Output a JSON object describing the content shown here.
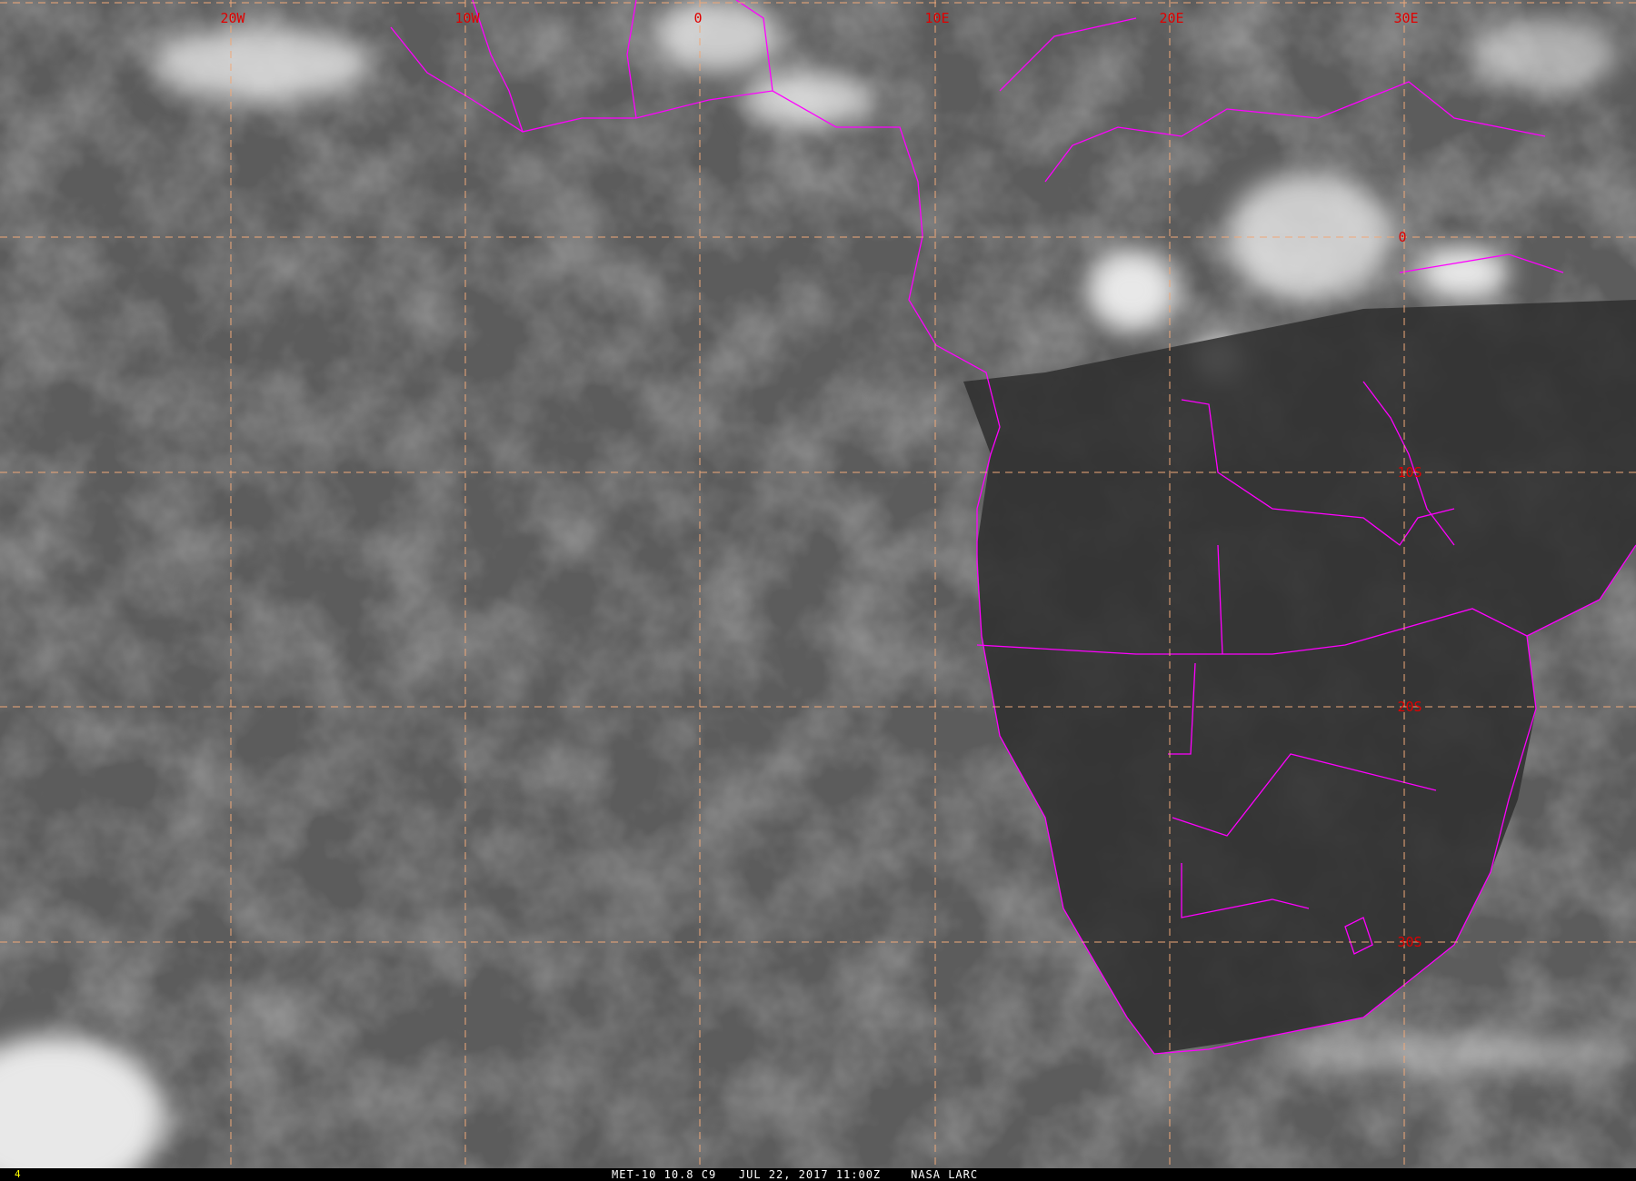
{
  "caption": {
    "satellite": "MET-10",
    "channel": "10.8",
    "band": "C9",
    "date": "JUL 22, 2017",
    "time": "11:00Z",
    "source": "NASA LARC"
  },
  "frame_number": "4",
  "grid": {
    "longitude_labels": [
      "20W",
      "10W",
      "0",
      "10E",
      "20E",
      "30E"
    ],
    "latitude_labels": [
      "0",
      "10S",
      "20S",
      "30S"
    ],
    "line_color": "#f0a878",
    "label_color": "#e00000"
  },
  "colors": {
    "borders": "#ff00ff",
    "background": "#5a5a5a"
  }
}
